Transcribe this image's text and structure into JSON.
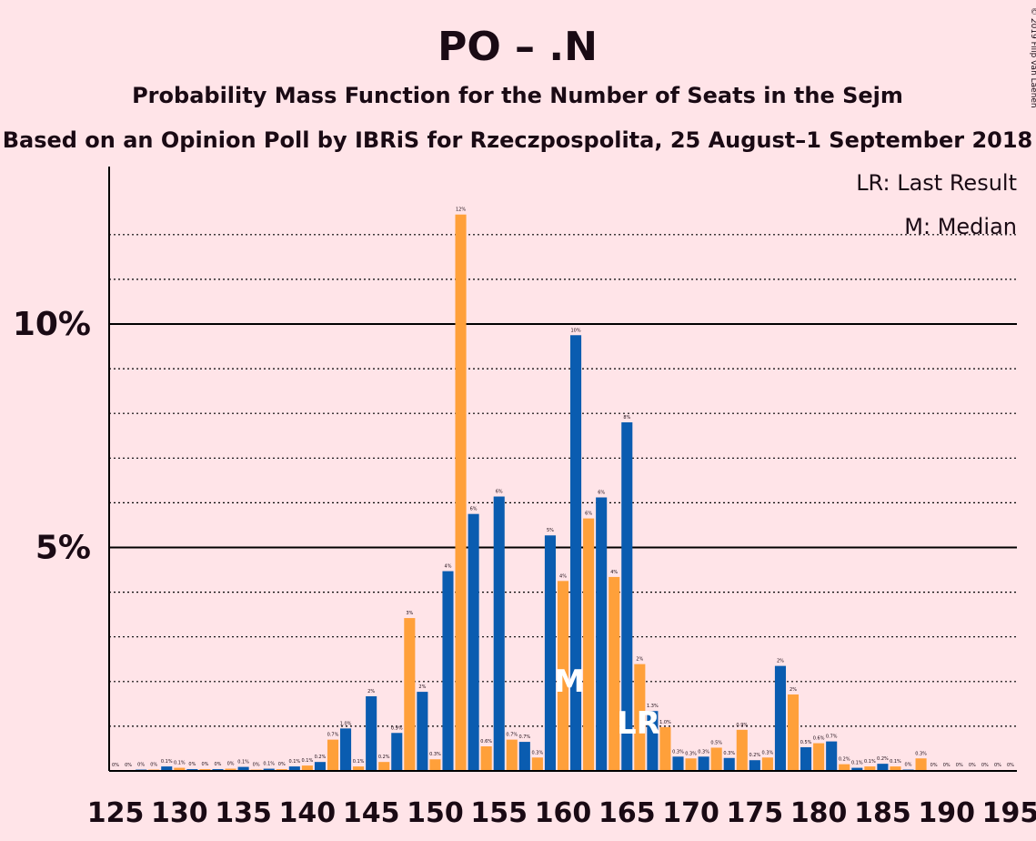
{
  "title": "PO – .N",
  "subtitle1": "Probability Mass Function for the Number of Seats in the Sejm",
  "subtitle2": "Based on an Opinion Poll by IBRiS for Rzeczpospolita, 25 August–1 September 2018",
  "copyright": "© 2019 Filip van Laenen",
  "legend": {
    "lr": "LR: Last Result",
    "m": "M: Median"
  },
  "markers": {
    "median_label": "M",
    "median_seat": 160,
    "lr_label": "LR",
    "lr_seat": 166
  },
  "colors": {
    "background": "#FFE4E8",
    "blue": "#0A5CB0",
    "orange": "#FFA03A",
    "text": "#1A0A14"
  },
  "chart_data": {
    "type": "bar",
    "xlabel": "",
    "ylabel": "",
    "ylim": [
      0,
      13.5
    ],
    "xlim": [
      124.5,
      195.5
    ],
    "y_major_ticks": [
      {
        "value": 5,
        "label": "5%"
      },
      {
        "value": 10,
        "label": "10%"
      }
    ],
    "y_minor_gridlines": [
      1,
      2,
      3,
      4,
      6,
      7,
      8,
      9,
      11,
      12
    ],
    "x_tick_labels": [
      "125",
      "130",
      "135",
      "140",
      "145",
      "150",
      "155",
      "160",
      "165",
      "170",
      "175",
      "180",
      "185",
      "190",
      "195"
    ],
    "seats": [
      125,
      126,
      127,
      128,
      129,
      130,
      131,
      132,
      133,
      134,
      135,
      136,
      137,
      138,
      139,
      140,
      141,
      142,
      143,
      144,
      145,
      146,
      147,
      148,
      149,
      150,
      151,
      152,
      153,
      154,
      155,
      156,
      157,
      158,
      159,
      160,
      161,
      162,
      163,
      164,
      165,
      166,
      167,
      168,
      169,
      170,
      171,
      172,
      173,
      174,
      175,
      176,
      177,
      178,
      179,
      180,
      181,
      182,
      183,
      184,
      185,
      186,
      187,
      188,
      189,
      190,
      191,
      192,
      193,
      194,
      195
    ],
    "values": [
      0.02,
      0.02,
      0.03,
      0.03,
      0.1,
      0.07,
      0.04,
      0.04,
      0.04,
      0.05,
      0.09,
      0.03,
      0.05,
      0.04,
      0.1,
      0.12,
      0.2,
      0.7,
      0.95,
      0.1,
      1.67,
      0.2,
      0.85,
      3.42,
      1.77,
      0.26,
      4.47,
      12.45,
      5.75,
      0.55,
      6.14,
      0.7,
      0.65,
      0.3,
      5.27,
      4.25,
      9.75,
      5.65,
      6.12,
      4.34,
      7.8,
      2.39,
      1.34,
      0.98,
      0.32,
      0.28,
      0.32,
      0.52,
      0.29,
      0.92,
      0.24,
      0.3,
      2.35,
      1.71,
      0.53,
      0.62,
      0.66,
      0.15,
      0.07,
      0.1,
      0.16,
      0.1,
      0.03,
      0.28,
      0.02,
      0.02,
      0.02,
      0.02,
      0.02,
      0.02,
      0.02
    ],
    "data_labels": [
      "0%",
      "0%",
      "0%",
      "0%",
      "0.1%",
      "0.1%",
      "0%",
      "0%",
      "0%",
      "0%",
      "0.1%",
      "0%",
      "0.1%",
      "0%",
      "0.1%",
      "0.1%",
      "0.2%",
      "0.7%",
      "1.0%",
      "0.1%",
      "2%",
      "0.2%",
      "0.9%",
      "3%",
      "2%",
      "0.3%",
      "4%",
      "12%",
      "6%",
      "0.6%",
      "6%",
      "0.7%",
      "0.7%",
      "0.3%",
      "5%",
      "4%",
      "10%",
      "6%",
      "6%",
      "4%",
      "8%",
      "2%",
      "1.3%",
      "1.0%",
      "0.3%",
      "0.3%",
      "0.3%",
      "0.5%",
      "0.3%",
      "0.9%",
      "0.2%",
      "0.3%",
      "2%",
      "2%",
      "0.5%",
      "0.6%",
      "0.7%",
      "0.2%",
      "0.1%",
      "0.1%",
      "0.2%",
      "0.1%",
      "0%",
      "0.3%",
      "0%",
      "0%",
      "0%",
      "0%",
      "0%",
      "0%",
      "0%"
    ]
  }
}
